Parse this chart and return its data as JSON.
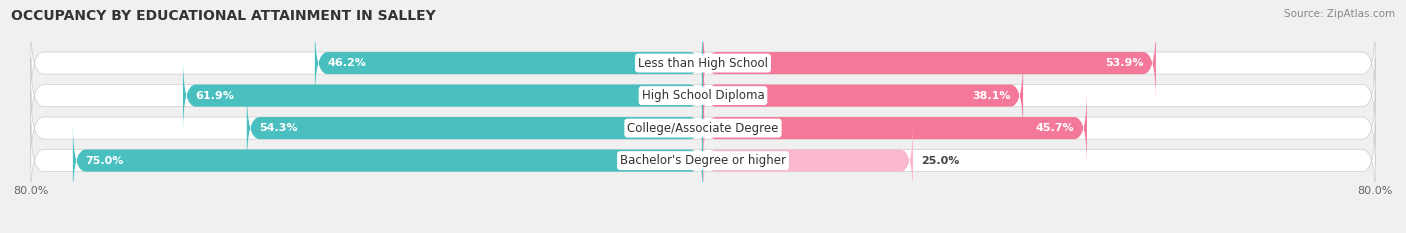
{
  "title": "OCCUPANCY BY EDUCATIONAL ATTAINMENT IN SALLEY",
  "source": "Source: ZipAtlas.com",
  "categories": [
    "Less than High School",
    "High School Diploma",
    "College/Associate Degree",
    "Bachelor's Degree or higher"
  ],
  "owner_values": [
    46.2,
    61.9,
    54.3,
    75.0
  ],
  "renter_values": [
    53.9,
    38.1,
    45.7,
    25.0
  ],
  "owner_color": "#4abfbf",
  "renter_color": "#f4789a",
  "renter_color_light": "#f9b8cb",
  "background_color": "#f0f0f0",
  "bar_bg_color": "#e0e0e0",
  "title_fontsize": 10,
  "source_fontsize": 7.5,
  "value_fontsize": 8,
  "cat_fontsize": 8.5,
  "legend_fontsize": 8.5,
  "bar_height": 0.68,
  "x_max": 80.0,
  "tick_label_left": "80.0%",
  "tick_label_right": "80.0%"
}
